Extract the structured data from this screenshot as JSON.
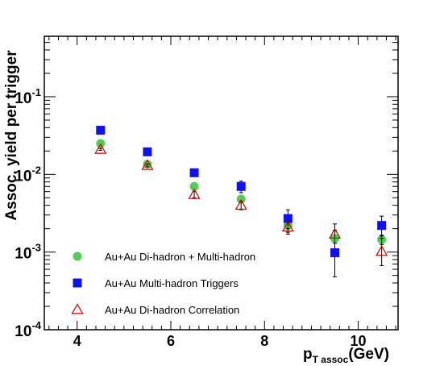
{
  "chart_data": {
    "type": "scatter",
    "xlabel_main": "p",
    "xlabel_sub": "T assoc",
    "xlabel_unit": "(GeV)",
    "ylabel": "Assoc. yield per trigger",
    "xlim": [
      3.3,
      10.85
    ],
    "ylim": [
      0.0001,
      0.6
    ],
    "y_scale": "log",
    "x_ticks": [
      4,
      6,
      8,
      10
    ],
    "x_tick_labels": [
      "4",
      "6",
      "8",
      "10"
    ],
    "y_ticks": [
      0.0001,
      0.001,
      0.01,
      0.1
    ],
    "y_tick_labels": [
      {
        "base": "10",
        "exp": "-4"
      },
      {
        "base": "10",
        "exp": "-3"
      },
      {
        "base": "10",
        "exp": "-2"
      },
      {
        "base": "10",
        "exp": "-1"
      }
    ],
    "legend_position": "bottom-left",
    "series": [
      {
        "name": "Au+Au Di-hadron + Multi-hadron",
        "marker": "circle",
        "color": "#55cc55",
        "x": [
          4.5,
          5.5,
          6.5,
          7.5,
          8.5,
          9.5,
          10.5
        ],
        "y": [
          0.025,
          0.0135,
          0.007,
          0.0048,
          0.0022,
          0.0015,
          0.00145
        ],
        "err_low": [
          0.0008,
          0.0005,
          0.0004,
          0.0005,
          0.0004,
          0.0004,
          0.0002
        ],
        "err_high": [
          0.0008,
          0.0005,
          0.0004,
          0.0005,
          0.0004,
          0.0004,
          0.0002
        ]
      },
      {
        "name": "Au+Au Multi-hadron Triggers",
        "marker": "square",
        "color": "#1111ee",
        "x": [
          4.5,
          5.5,
          6.5,
          7.5,
          8.5,
          9.5,
          10.5
        ],
        "y": [
          0.037,
          0.0195,
          0.0105,
          0.007,
          0.0027,
          0.00098,
          0.0022
        ],
        "err_low": [
          0.001,
          0.0008,
          0.0008,
          0.0012,
          0.0007,
          0.0005,
          0.0007
        ],
        "err_high": [
          0.001,
          0.0008,
          0.0008,
          0.0012,
          0.0008,
          0.0009,
          0.0007
        ]
      },
      {
        "name": "Au+Au Di-hadron Correlation",
        "marker": "triangle-open",
        "color": "#cc0000",
        "x": [
          4.5,
          5.5,
          6.5,
          7.5,
          8.5,
          9.5,
          10.5
        ],
        "y": [
          0.021,
          0.013,
          0.0055,
          0.004,
          0.0021,
          0.0017,
          0.00102
        ],
        "err_low": [
          0.0006,
          0.0005,
          0.0005,
          0.0005,
          0.0004,
          0.0004,
          0.00035
        ],
        "err_high": [
          0.0006,
          0.0005,
          0.0005,
          0.0005,
          0.0004,
          0.0006,
          0.0006
        ]
      }
    ]
  }
}
